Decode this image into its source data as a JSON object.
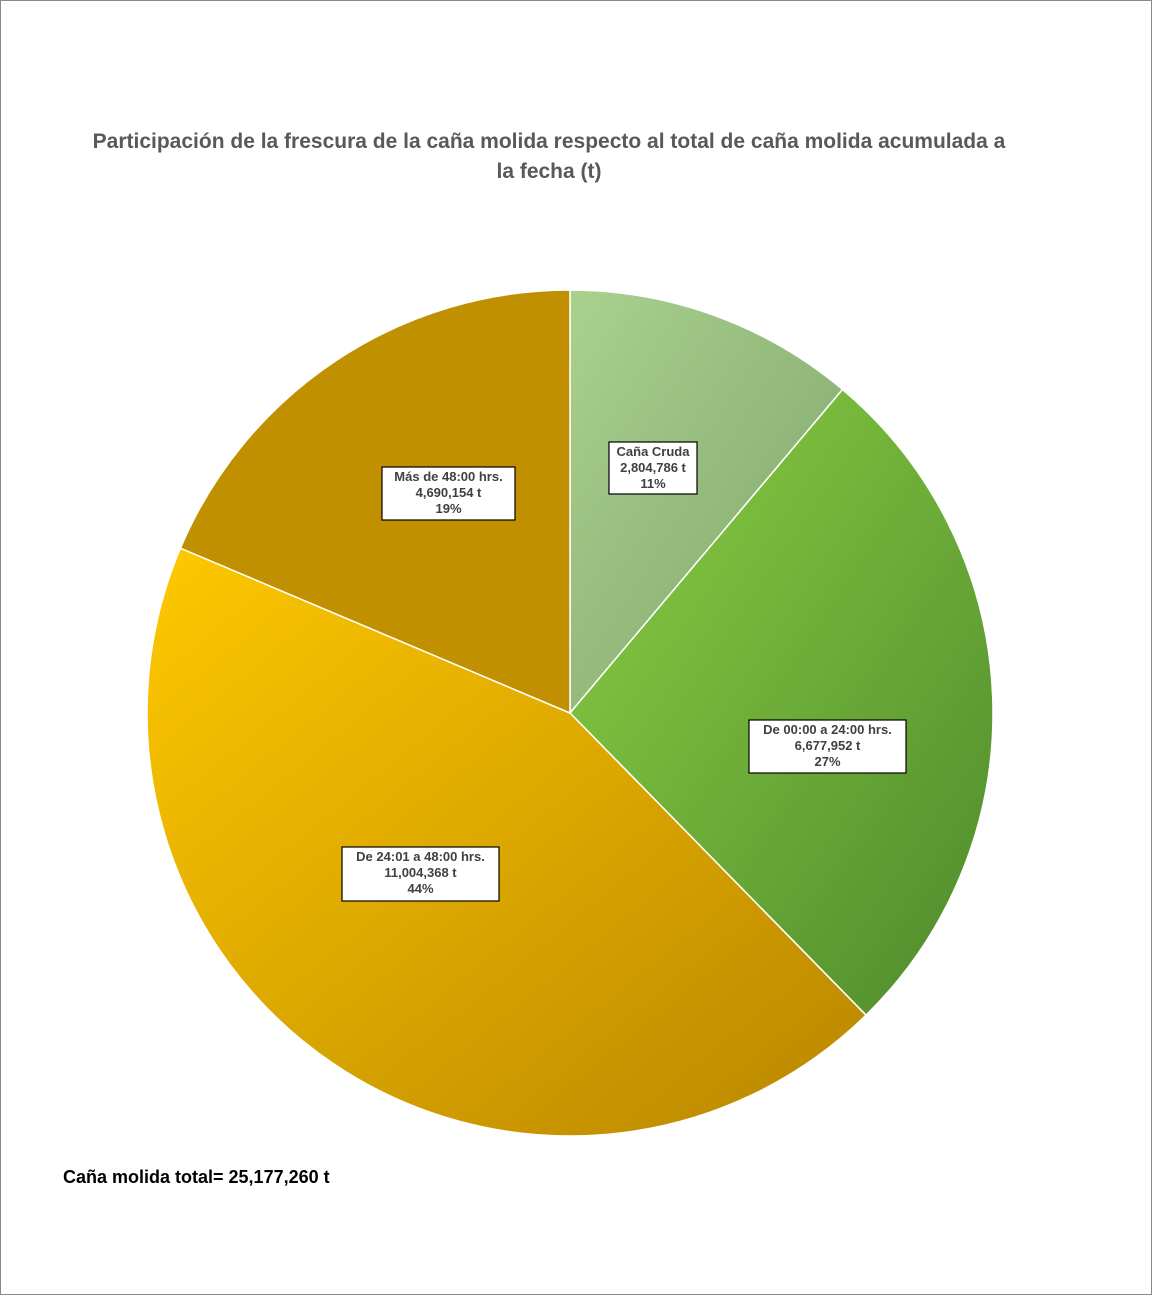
{
  "chart_data": {
    "type": "pie",
    "title": "Participación de la frescura de la caña molida respecto al total de caña molida acumulada a la fecha (t)",
    "unit": "t",
    "slices": [
      {
        "name": "Caña Cruda",
        "value_label": "2,804,786  t",
        "percent_label": "11%",
        "value": 2804786,
        "color_a": "#a9d18e",
        "color_b": "#7fa36a"
      },
      {
        "name": "De 00:00 a 24:00 hrs.",
        "value_label": "6,677,952 t",
        "percent_label": "27%",
        "value": 6677952,
        "color_a": "#8cd044",
        "color_b": "#4e8a2c"
      },
      {
        "name": "De 24:01 a 48:00 hrs.",
        "value_label": "11,004,368 t",
        "percent_label": "44%",
        "value": 11004368,
        "color_a": "#ffc800",
        "color_b": "#b88600"
      },
      {
        "name": "Más de 48:00 hrs.",
        "value_label": "4,690,154 t",
        "percent_label": "19%",
        "value": 4690154,
        "color_a": "#c09000",
        "color_b": "#c09000"
      }
    ],
    "total_text": "Caña molida total= 25,177,260  t"
  }
}
